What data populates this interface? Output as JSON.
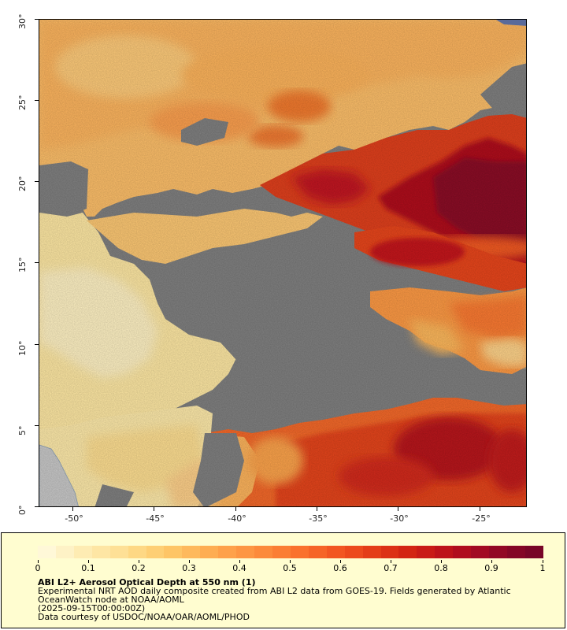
{
  "map": {
    "x_ticks": [
      "-50°",
      "-45°",
      "-40°",
      "-35°",
      "-30°",
      "-25°"
    ],
    "y_ticks": [
      "0°",
      "5°",
      "10°",
      "15°",
      "20°",
      "25°",
      "30°"
    ],
    "lon_range": [
      -52.2,
      -22.2
    ],
    "lat_range": [
      0,
      30
    ],
    "no_data_color": "#808080",
    "land_color": "#c8c8c8"
  },
  "legend": {
    "colorbar_ticks": [
      "0",
      "0.1",
      "0.2",
      "0.3",
      "0.4",
      "0.5",
      "0.6",
      "0.7",
      "0.8",
      "0.9",
      "1"
    ],
    "colorbar_colors": [
      "#fff8d8",
      "#fef2c6",
      "#feecb3",
      "#fee6a4",
      "#fee096",
      "#fed884",
      "#fecf74",
      "#fec566",
      "#feb95c",
      "#fead52",
      "#fea14a",
      "#fd9643",
      "#fc8a3b",
      "#fb7e34",
      "#fa712d",
      "#f66427",
      "#f25622",
      "#ec4a1d",
      "#e43d18",
      "#dc3115",
      "#d32513",
      "#c91b16",
      "#bd131a",
      "#b00d1e",
      "#a20a22",
      "#920825",
      "#840626",
      "#780527"
    ],
    "title": "ABI L2+ Aerosol Optical Depth at 550 nm (1)",
    "description_line1": "Experimental NRT AOD daily composite created from ABI L2 data from GOES-19. Fields generated by Atlantic",
    "description_line2": "OceanWatch node at NOAA/AOML",
    "description_line3": "(2025-09-15T00:00:00Z)",
    "description_line4": "Data courtesy of USDOC/NOAA/OAR/AOML/PHOD"
  }
}
